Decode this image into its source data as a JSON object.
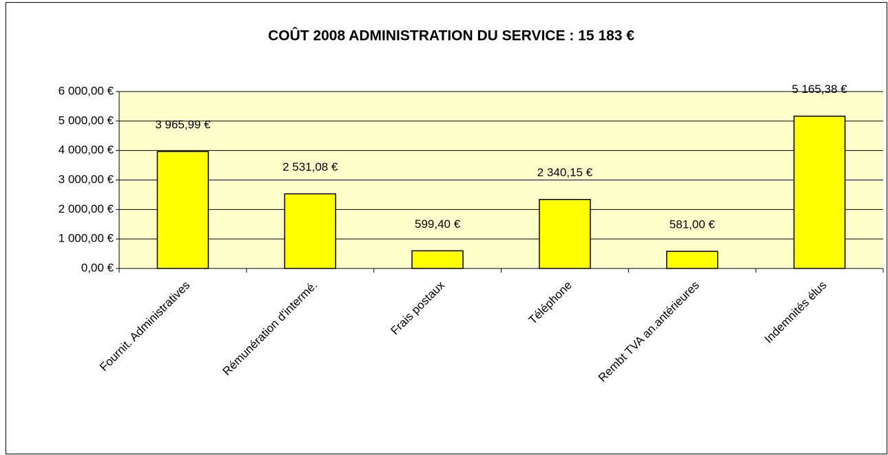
{
  "chart_data": {
    "type": "bar",
    "title": "COÛT 2008 ADMINISTRATION DU SERVICE : 15 183 €",
    "categories": [
      "Fournit. Administratives",
      "Rémunération d'intermé.",
      "Frais postaux",
      "Téléphone",
      "Rembt TVA an.antérieures",
      "Indemnités élus"
    ],
    "values": [
      3965.99,
      2531.08,
      599.4,
      2340.15,
      581.0,
      5165.38
    ],
    "value_labels": [
      "3 965,99 €",
      "2 531,08 €",
      "599,40 €",
      "2 340,15 €",
      "581,00 €",
      "5 165,38 €"
    ],
    "color": "#ffff00",
    "ylim": [
      0,
      6000
    ],
    "yticks": [
      {
        "value": 0,
        "label": "0,00 €"
      },
      {
        "value": 1000,
        "label": "1 000,00 €"
      },
      {
        "value": 2000,
        "label": "2 000,00 €"
      },
      {
        "value": 3000,
        "label": "3 000,00 €"
      },
      {
        "value": 4000,
        "label": "4 000,00 €"
      },
      {
        "value": 5000,
        "label": "5 000,00 €"
      },
      {
        "value": 6000,
        "label": "6 000,00 €"
      }
    ],
    "grid": true
  }
}
